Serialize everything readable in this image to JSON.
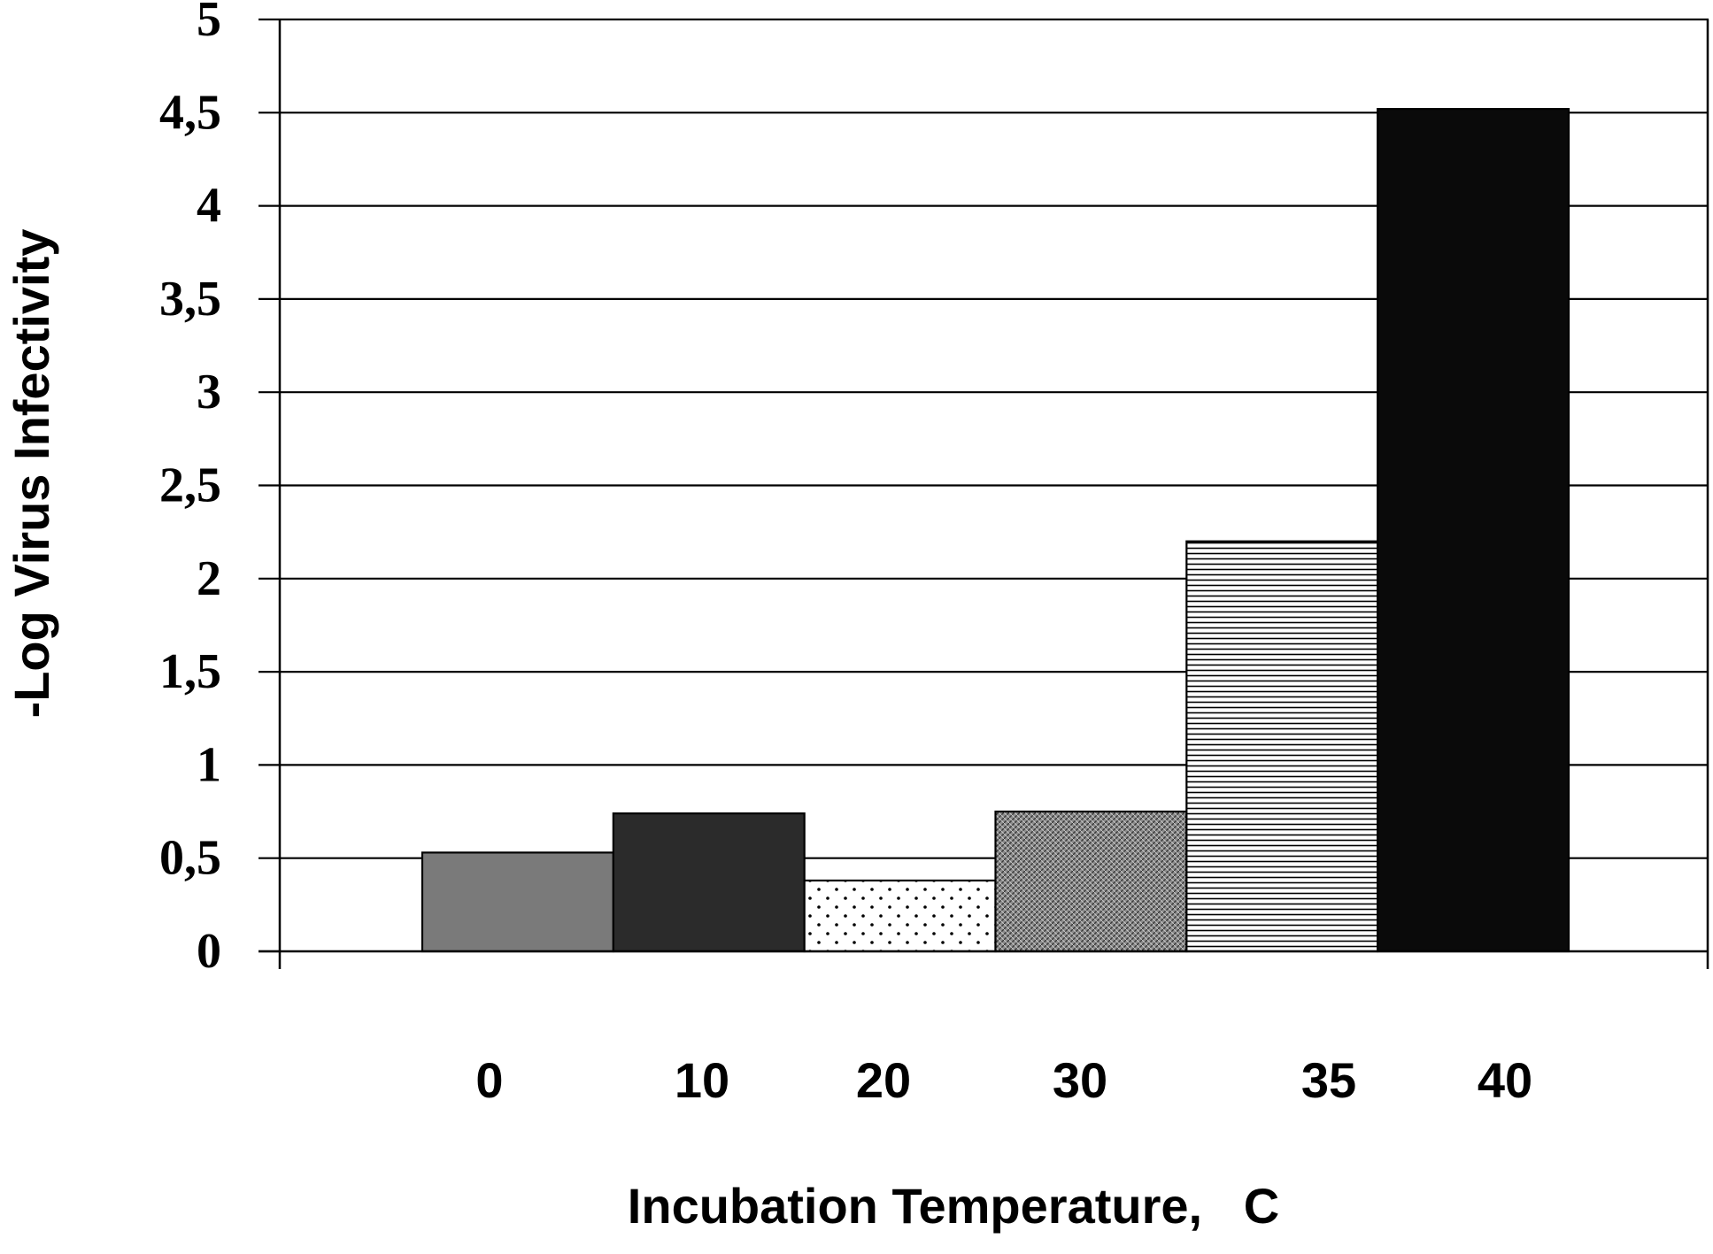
{
  "chart_data": {
    "type": "bar",
    "categories": [
      "0",
      "10",
      "20",
      "30",
      "35",
      "40"
    ],
    "values": [
      0.53,
      0.74,
      0.38,
      0.75,
      2.2,
      4.52
    ],
    "fills": [
      "gray",
      "dark-gray",
      "dotted",
      "crosshatch",
      "horizontal-lines",
      "black"
    ],
    "ylim": [
      0,
      5
    ],
    "yticks": [
      0,
      0.5,
      1,
      1.5,
      2,
      2.5,
      3,
      3.5,
      4,
      4.5,
      5
    ],
    "ytick_labels": [
      "0",
      "0,5",
      "1",
      "1,5",
      "2",
      "2,5",
      "3",
      "3,5",
      "4",
      "4,5",
      "5"
    ],
    "xlabel": "Incubation Temperature,   C",
    "ylabel": "-Log Virus Infectivity",
    "grid": true,
    "colors": {
      "gray": "#7a7a7a",
      "dark-gray": "#2b2b2b",
      "black": "#0a0a0a",
      "pattern-ink": "#000000"
    }
  }
}
